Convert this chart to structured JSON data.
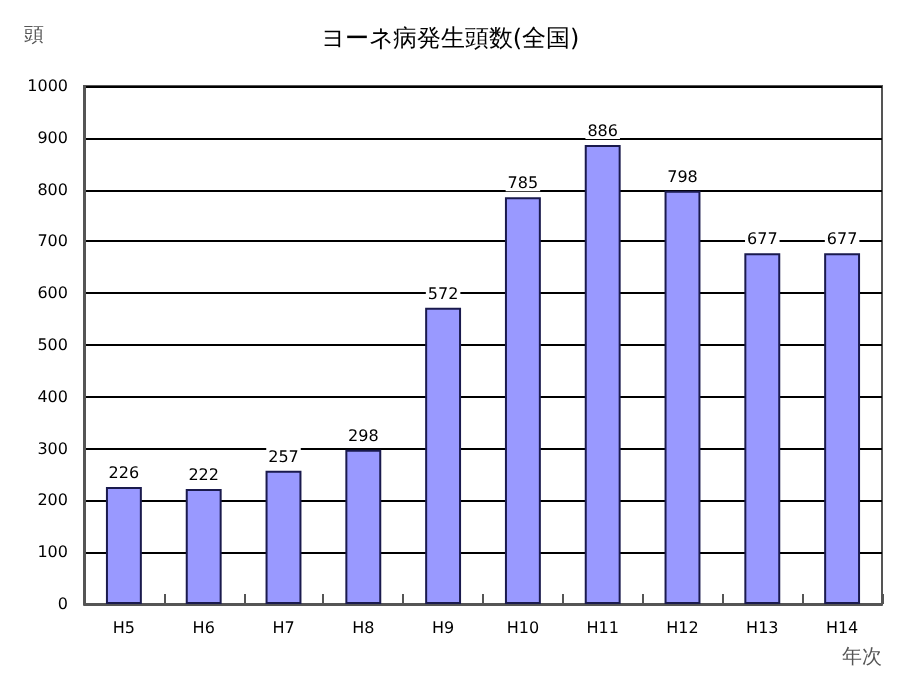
{
  "chart_data": {
    "type": "bar",
    "title": "ヨーネ病発生頭数(全国)",
    "xlabel": "年次",
    "ylabel": "頭",
    "categories": [
      "H5",
      "H6",
      "H7",
      "H8",
      "H9",
      "H10",
      "H11",
      "H12",
      "H13",
      "H14"
    ],
    "values": [
      226,
      222,
      257,
      298,
      572,
      785,
      886,
      798,
      677,
      677
    ],
    "color": "#9999ff",
    "ylim": [
      0,
      1000
    ],
    "yticks": [
      0,
      100,
      200,
      300,
      400,
      500,
      600,
      700,
      800,
      900,
      1000
    ],
    "grid": "y",
    "data_labels": true
  }
}
